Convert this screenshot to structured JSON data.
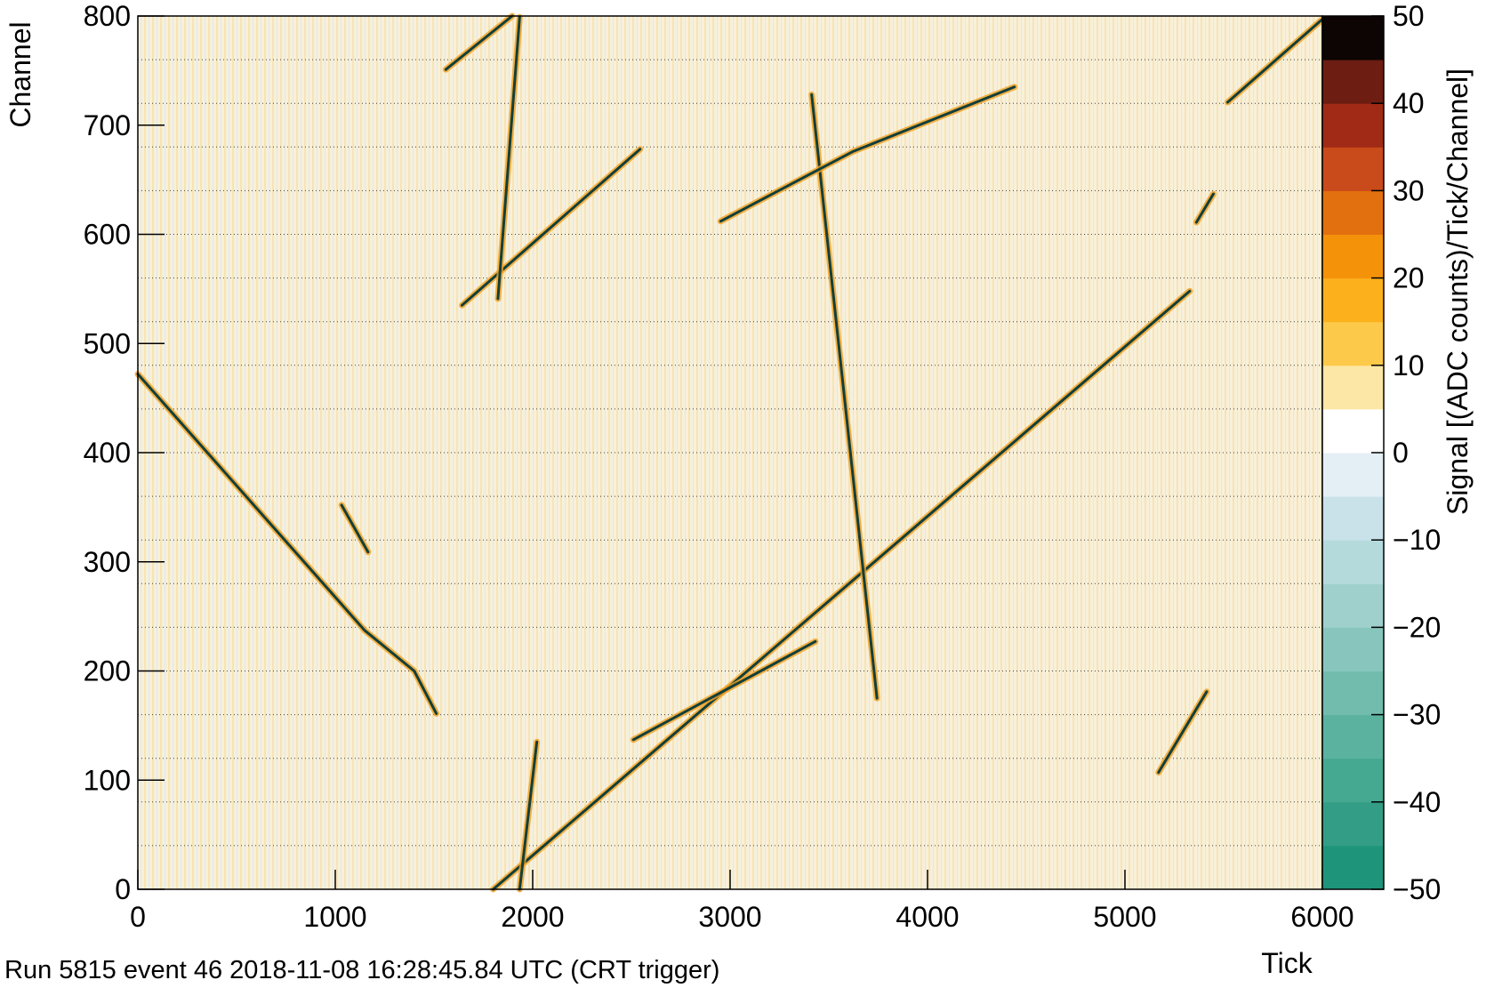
{
  "chart_data": {
    "type": "heatmap",
    "x_label": "Tick",
    "y_label": "Channel",
    "footer": "Run 5815 event 46 2018-11-08 16:28:45.84 UTC (CRT trigger)",
    "xlim": [
      0,
      6000
    ],
    "ylim": [
      0,
      800
    ],
    "xticks": [
      0,
      1000,
      2000,
      3000,
      4000,
      5000,
      6000
    ],
    "yticks": [
      0,
      100,
      200,
      300,
      400,
      500,
      600,
      700,
      800
    ],
    "ygrid": [
      40,
      80,
      120,
      160,
      200,
      240,
      280,
      320,
      360,
      400,
      440,
      480,
      520,
      560,
      600,
      640,
      680,
      720,
      760
    ],
    "track_color": "#123f3a",
    "halo_color": "#f0a020",
    "tracks": [
      {
        "x": [
          0,
          1150,
          1400,
          1512
        ],
        "y": [
          472,
          237,
          200,
          161
        ]
      },
      {
        "x": [
          1032,
          1166
        ],
        "y": [
          352,
          309
        ]
      },
      {
        "x": [
          1800,
          5328
        ],
        "y": [
          0,
          548
        ]
      },
      {
        "x": [
          2510,
          3432
        ],
        "y": [
          137,
          227
        ]
      },
      {
        "x": [
          3413,
          3744
        ],
        "y": [
          728,
          175
        ]
      },
      {
        "x": [
          2952,
          3624,
          4440
        ],
        "y": [
          612,
          676,
          735
        ]
      },
      {
        "x": [
          1642,
          2544
        ],
        "y": [
          535,
          678
        ]
      },
      {
        "x": [
          1824,
          1934
        ],
        "y": [
          541,
          799
        ]
      },
      {
        "x": [
          1560,
          1896
        ],
        "y": [
          751,
          800
        ]
      },
      {
        "x": [
          1934,
          2021
        ],
        "y": [
          0,
          135
        ]
      },
      {
        "x": [
          5520,
          6000
        ],
        "y": [
          721,
          797
        ]
      },
      {
        "x": [
          5170,
          5414
        ],
        "y": [
          107,
          181
        ]
      },
      {
        "x": [
          5362,
          5448
        ],
        "y": [
          611,
          637
        ]
      }
    ],
    "colorbar": {
      "label": "Signal [(ADC counts)/Tick/Channel]",
      "zlim": [
        -50,
        50
      ],
      "zticks": [
        {
          "value": -50,
          "label": "−50"
        },
        {
          "value": -40,
          "label": "−40"
        },
        {
          "value": -30,
          "label": "−30"
        },
        {
          "value": -20,
          "label": "−20"
        },
        {
          "value": -10,
          "label": "−10"
        },
        0,
        10,
        20,
        30,
        40,
        50
      ],
      "colors": [
        "#1e957a",
        "#339e85",
        "#45a891",
        "#5bb29f",
        "#72bcae",
        "#88c6bd",
        "#9fd0cc",
        "#b5dadc",
        "#c9e2ea",
        "#e4eff5",
        "#ffffff",
        "#fde7a6",
        "#fdc94a",
        "#fbb01c",
        "#f4920a",
        "#e2700f",
        "#c94a1a",
        "#a02a15",
        "#6d1d12",
        "#0d0404"
      ]
    }
  }
}
